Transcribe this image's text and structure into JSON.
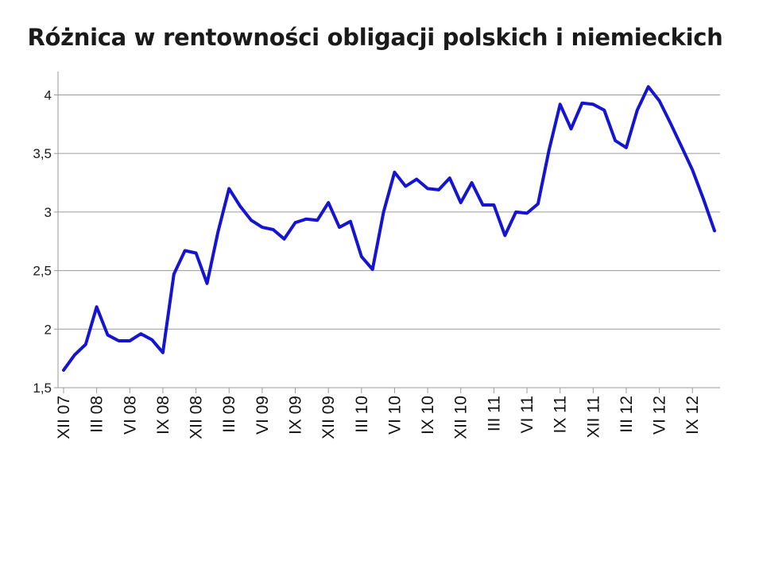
{
  "chart_data": {
    "type": "line",
    "title": "Różnica w rentowności obligacji polskich i niemieckich",
    "xlabel": "",
    "ylabel": "",
    "ylim": [
      1.5,
      4.2
    ],
    "yticks": [
      "1,5",
      "2",
      "2,5",
      "3",
      "3,5",
      "4"
    ],
    "ytick_values": [
      1.5,
      2,
      2.5,
      3,
      3.5,
      4
    ],
    "x_labels": [
      {
        "index": 0,
        "label": "XII 07"
      },
      {
        "index": 3,
        "label": "III 08"
      },
      {
        "index": 6,
        "label": "VI 08"
      },
      {
        "index": 9,
        "label": "IX 08"
      },
      {
        "index": 12,
        "label": "XII 08"
      },
      {
        "index": 15,
        "label": "III 09"
      },
      {
        "index": 18,
        "label": "VI 09"
      },
      {
        "index": 21,
        "label": "IX 09"
      },
      {
        "index": 24,
        "label": "XII 09"
      },
      {
        "index": 27,
        "label": "III 10"
      },
      {
        "index": 30,
        "label": "VI 10"
      },
      {
        "index": 33,
        "label": "IX 10"
      },
      {
        "index": 36,
        "label": "XII 10"
      },
      {
        "index": 39,
        "label": "III 11"
      },
      {
        "index": 42,
        "label": "VI 11"
      },
      {
        "index": 45,
        "label": "IX 11"
      },
      {
        "index": 48,
        "label": "XII 11"
      },
      {
        "index": 51,
        "label": "III 12"
      },
      {
        "index": 54,
        "label": "VI 12"
      },
      {
        "index": 57,
        "label": "IX 12"
      }
    ],
    "grid": true,
    "legend": "none",
    "series": [
      {
        "color": "#1414d2",
        "values": [
          1.65,
          1.78,
          1.87,
          2.19,
          1.95,
          1.9,
          1.9,
          1.96,
          1.91,
          1.8,
          2.47,
          2.67,
          2.65,
          2.39,
          2.83,
          3.2,
          3.05,
          2.93,
          2.87,
          2.85,
          2.77,
          2.91,
          2.94,
          2.93,
          3.08,
          2.87,
          2.92,
          2.62,
          2.51,
          3.0,
          3.34,
          3.22,
          3.28,
          3.2,
          3.19,
          3.29,
          3.08,
          3.25,
          3.06,
          3.06,
          2.8,
          3.0,
          2.99,
          3.07,
          3.53,
          3.92,
          3.71,
          3.93,
          3.92,
          3.87,
          3.61,
          3.55,
          3.87,
          4.07,
          3.95,
          3.76,
          3.56,
          3.36,
          3.11,
          2.84
        ]
      }
    ]
  }
}
